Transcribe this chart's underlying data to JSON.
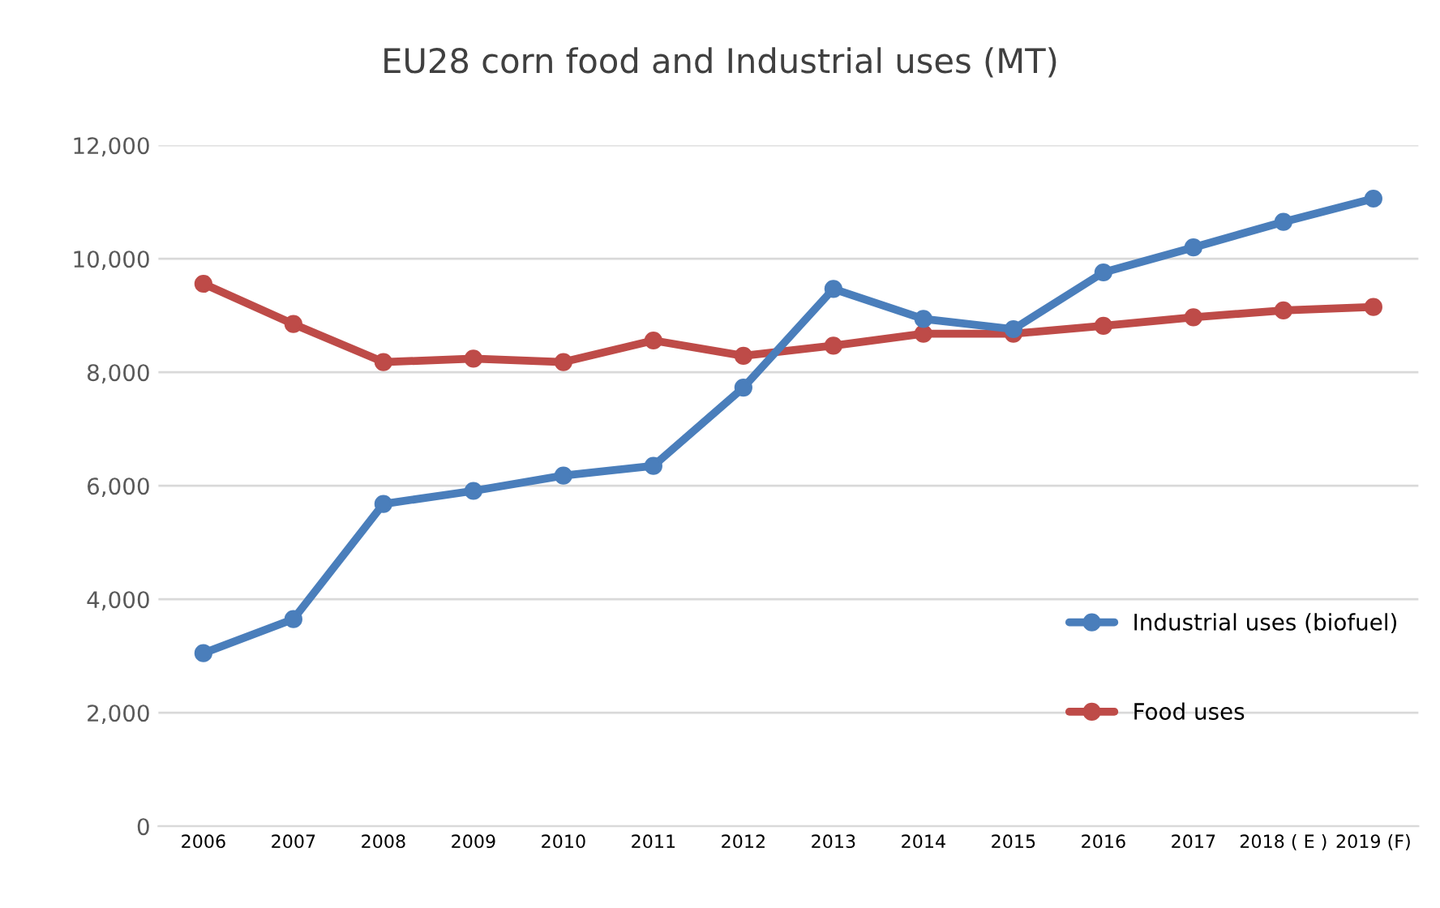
{
  "chart_data": {
    "type": "line",
    "title": "EU28 corn food and Industrial uses (MT)",
    "categories": [
      "2006",
      "2007",
      "2008",
      "2009",
      "2010",
      "2011",
      "2012",
      "2013",
      "2014",
      "2015",
      "2016",
      "2017",
      "2018 ( E )",
      "2019 (F)"
    ],
    "series": [
      {
        "name": "Industrial uses (biofuel)",
        "color": "#4a7ebb",
        "values": [
          3050,
          3650,
          5680,
          5910,
          6180,
          6350,
          7730,
          9470,
          8940,
          8760,
          9760,
          10200,
          10650,
          11060
        ]
      },
      {
        "name": "Food uses",
        "color": "#be4b48",
        "values": [
          9560,
          8850,
          8180,
          8240,
          8180,
          8560,
          8290,
          8470,
          8680,
          8680,
          8820,
          8970,
          9090,
          9150
        ]
      }
    ],
    "ylim": [
      0,
      12000
    ],
    "yticks": [
      0,
      {
        "value": 2000,
        "label": "2,000"
      },
      {
        "value": 4000,
        "label": "4,000"
      },
      {
        "value": 6000,
        "label": "6,000"
      },
      {
        "value": 8000,
        "label": "8,000"
      },
      {
        "value": 10000,
        "label": "10,000"
      },
      {
        "value": 12000,
        "label": "12,000"
      }
    ],
    "grid": "y",
    "legend": "bottom right",
    "marker": "circle",
    "line_style": "solid"
  }
}
